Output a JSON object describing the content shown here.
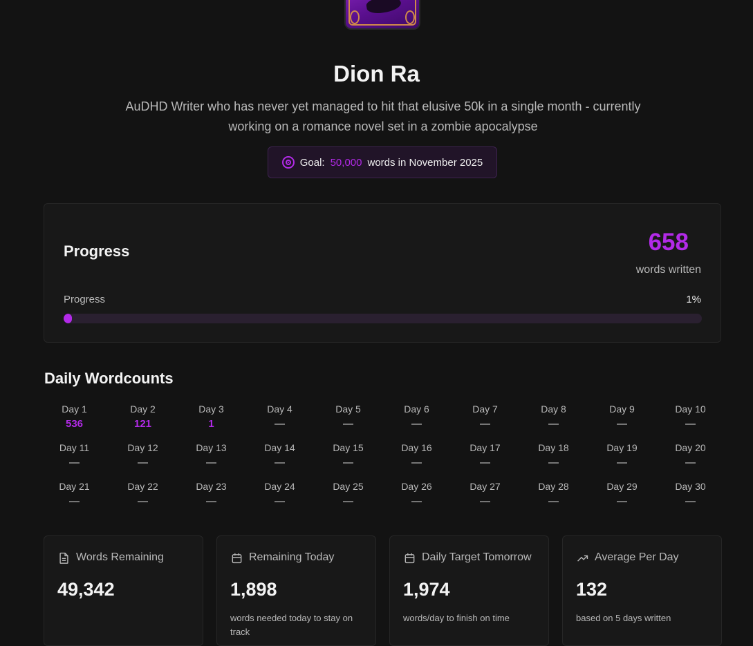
{
  "profile": {
    "name": "Dion Ra",
    "bio": "AuDHD Writer who has never yet managed to hit that elusive 50k in a single month - currently working on a romance novel set in a zombie apocalypse"
  },
  "goal": {
    "prefix": "Goal:",
    "target": "50,000",
    "suffix": "words in November 2025",
    "icon": "target-icon"
  },
  "progress": {
    "title": "Progress",
    "words_written": "658",
    "words_written_label": "words written",
    "bar_label": "Progress",
    "percent_label": "1%",
    "fraction": 0.01316
  },
  "daily": {
    "title": "Daily Wordcounts",
    "days": [
      {
        "label": "Day 1",
        "value": "536"
      },
      {
        "label": "Day 2",
        "value": "121"
      },
      {
        "label": "Day 3",
        "value": "1"
      },
      {
        "label": "Day 4",
        "value": "—"
      },
      {
        "label": "Day 5",
        "value": "—"
      },
      {
        "label": "Day 6",
        "value": "—"
      },
      {
        "label": "Day 7",
        "value": "—"
      },
      {
        "label": "Day 8",
        "value": "—"
      },
      {
        "label": "Day 9",
        "value": "—"
      },
      {
        "label": "Day 10",
        "value": "—"
      },
      {
        "label": "Day 11",
        "value": "—"
      },
      {
        "label": "Day 12",
        "value": "—"
      },
      {
        "label": "Day 13",
        "value": "—"
      },
      {
        "label": "Day 14",
        "value": "—"
      },
      {
        "label": "Day 15",
        "value": "—"
      },
      {
        "label": "Day 16",
        "value": "—"
      },
      {
        "label": "Day 17",
        "value": "—"
      },
      {
        "label": "Day 18",
        "value": "—"
      },
      {
        "label": "Day 19",
        "value": "—"
      },
      {
        "label": "Day 20",
        "value": "—"
      },
      {
        "label": "Day 21",
        "value": "—"
      },
      {
        "label": "Day 22",
        "value": "—"
      },
      {
        "label": "Day 23",
        "value": "—"
      },
      {
        "label": "Day 24",
        "value": "—"
      },
      {
        "label": "Day 25",
        "value": "—"
      },
      {
        "label": "Day 26",
        "value": "—"
      },
      {
        "label": "Day 27",
        "value": "—"
      },
      {
        "label": "Day 28",
        "value": "—"
      },
      {
        "label": "Day 29",
        "value": "—"
      },
      {
        "label": "Day 30",
        "value": "—"
      }
    ]
  },
  "stats": [
    {
      "icon": "document-icon",
      "label": "Words Remaining",
      "value": "49,342",
      "desc": ""
    },
    {
      "icon": "calendar-icon",
      "label": "Remaining Today",
      "value": "1,898",
      "desc": "words needed today to stay on track"
    },
    {
      "icon": "calendar-icon",
      "label": "Daily Target Tomorrow",
      "value": "1,974",
      "desc": "words/day to finish on time"
    },
    {
      "icon": "trending-up-icon",
      "label": "Average Per Day",
      "value": "132",
      "desc": "based on 5 days written"
    }
  ],
  "colors": {
    "accent": "#b22ae8",
    "background": "#131313",
    "card": "#181818"
  }
}
